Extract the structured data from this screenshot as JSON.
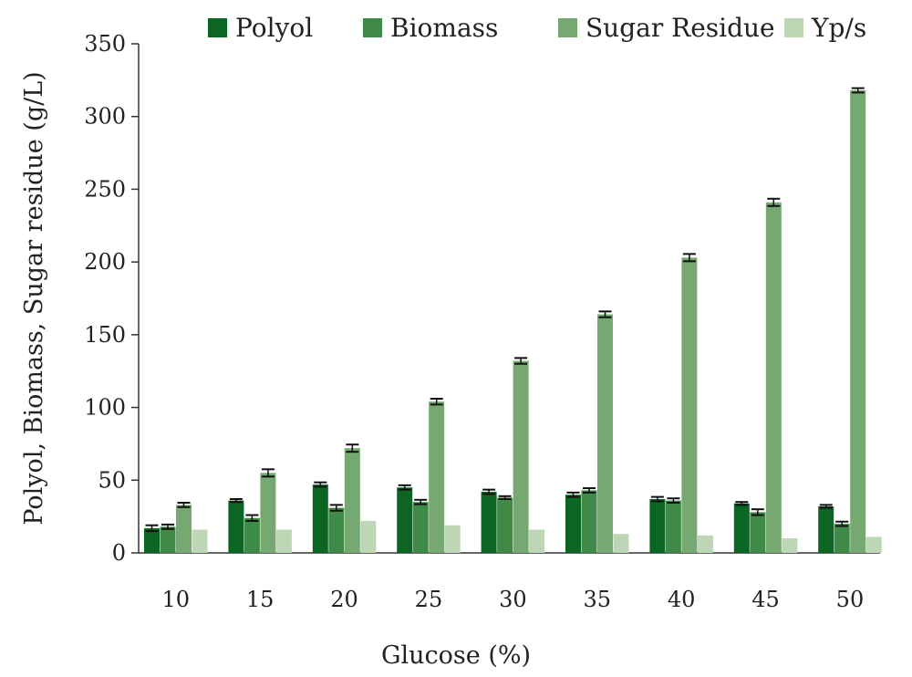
{
  "chart_data": {
    "type": "bar",
    "title": "",
    "xlabel": "Glucose (%)",
    "ylabel": "Polyol, Biomass, Sugar residue (g/L)",
    "categories": [
      "10",
      "15",
      "20",
      "25",
      "30",
      "35",
      "40",
      "45",
      "50"
    ],
    "ylim": [
      0,
      350
    ],
    "yticks": [
      "0",
      "50",
      "100",
      "150",
      "200",
      "250",
      "300",
      "350"
    ],
    "grid": false,
    "legend_position": "top",
    "series": [
      {
        "name": "Polyol",
        "color": "#0b6623",
        "values": [
          17,
          36,
          47,
          45,
          42,
          40,
          37,
          34,
          32
        ],
        "errors": [
          2,
          1,
          1.5,
          1.5,
          1.5,
          1.5,
          1.5,
          1,
          1
        ]
      },
      {
        "name": "Biomass",
        "color": "#3f8a47",
        "values": [
          18,
          24,
          31,
          35,
          38,
          43,
          36,
          28,
          20
        ],
        "errors": [
          1.5,
          2,
          2,
          1.5,
          1,
          1.5,
          1.5,
          2,
          1.5
        ]
      },
      {
        "name": "Sugar Residue",
        "color": "#76a871",
        "values": [
          33,
          55,
          72,
          104,
          132,
          164,
          203,
          241,
          318
        ],
        "errors": [
          1.5,
          2.5,
          2.5,
          2,
          2,
          2,
          2.5,
          2.5,
          1.5
        ]
      },
      {
        "name": "Yp/s",
        "color": "#bcd6b6",
        "values": [
          16,
          16,
          22,
          19,
          16,
          13,
          12,
          10,
          11
        ],
        "errors": [
          0,
          0,
          0,
          0,
          0,
          0,
          0,
          0,
          0
        ]
      }
    ]
  }
}
